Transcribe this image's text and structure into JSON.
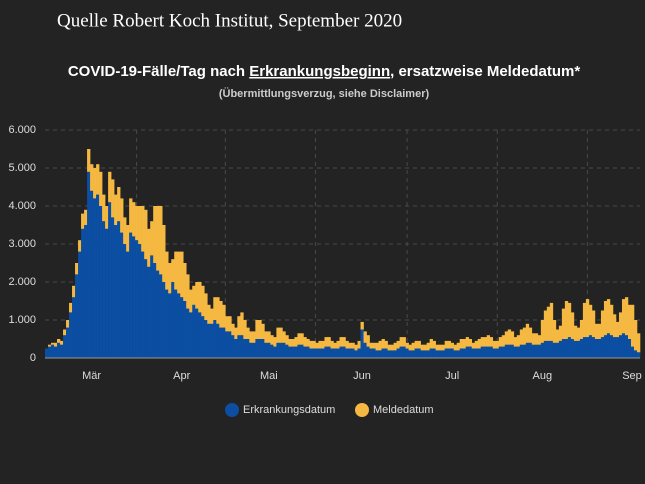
{
  "source": "Quelle Robert Koch Institut, September 2020",
  "chart_data": {
    "type": "stacked_bar",
    "title_parts": [
      "COVID-19-Fälle/Tag nach ",
      "Erkrankungsbeginn",
      ", ersatzweise Meldedatum*"
    ],
    "subtitle": "(Übermittlungsverzug, siehe Disclaimer)",
    "categories": [
      null,
      null,
      null,
      null,
      null,
      null,
      null,
      null,
      null,
      null,
      null,
      null,
      null,
      null,
      null,
      "Mär",
      null,
      null,
      null,
      null,
      null,
      null,
      null,
      null,
      null,
      null,
      null,
      null,
      null,
      null,
      null,
      null,
      null,
      null,
      null,
      null,
      null,
      null,
      null,
      null,
      null,
      null,
      null,
      null,
      null,
      "Apr",
      null,
      null,
      null,
      null,
      null,
      null,
      null,
      null,
      null,
      null,
      null,
      null,
      null,
      null,
      null,
      null,
      null,
      null,
      null,
      null,
      null,
      null,
      null,
      null,
      null,
      null,
      null,
      null,
      "Mai",
      null,
      null,
      null,
      null,
      null,
      null,
      null,
      null,
      null,
      null,
      null,
      null,
      null,
      null,
      null,
      null,
      null,
      null,
      null,
      null,
      null,
      null,
      null,
      null,
      null,
      null,
      null,
      null,
      null,
      null,
      "Jun",
      null,
      null,
      null,
      null,
      null,
      null,
      null,
      null,
      null,
      null,
      null,
      null,
      null,
      null,
      null,
      null,
      null,
      null,
      null,
      null,
      null,
      null,
      null,
      null,
      null,
      null,
      null,
      null,
      null,
      "Jul",
      null,
      null,
      null,
      null,
      null,
      null,
      null,
      null,
      null,
      null,
      null,
      null,
      null,
      null,
      null,
      null,
      null,
      null,
      null,
      null,
      null,
      null,
      null,
      null,
      null,
      null,
      null,
      null,
      null,
      "Aug",
      null,
      null,
      null,
      null,
      null,
      null,
      null,
      null,
      null,
      null,
      null,
      null,
      null,
      null,
      null,
      null,
      null,
      null,
      null,
      null,
      null,
      null,
      null,
      null,
      null,
      null,
      null,
      null,
      null,
      "Sep",
      null,
      null
    ],
    "series": [
      {
        "name": "Erkrankungsdatum",
        "color": "#0b4ea2",
        "values": [
          250,
          300,
          350,
          300,
          400,
          350,
          600,
          800,
          1200,
          1600,
          2200,
          2800,
          3400,
          3500,
          4900,
          4400,
          4200,
          4300,
          4000,
          3600,
          3400,
          4100,
          3700,
          3500,
          3600,
          3300,
          3000,
          2800,
          3300,
          3200,
          3100,
          3000,
          2800,
          2600,
          2400,
          2700,
          2500,
          2300,
          2200,
          2000,
          1800,
          1700,
          2000,
          1800,
          1700,
          1600,
          1500,
          1300,
          1200,
          1400,
          1300,
          1200,
          1100,
          1000,
          900,
          900,
          1000,
          900,
          800,
          800,
          700,
          700,
          600,
          500,
          600,
          600,
          500,
          500,
          400,
          400,
          500,
          500,
          500,
          400,
          400,
          350,
          300,
          400,
          400,
          400,
          350,
          300,
          300,
          300,
          350,
          350,
          300,
          300,
          250,
          250,
          250,
          250,
          250,
          300,
          300,
          250,
          250,
          250,
          300,
          300,
          250,
          250,
          250,
          200,
          250,
          750,
          400,
          300,
          250,
          250,
          200,
          200,
          250,
          250,
          200,
          200,
          200,
          250,
          300,
          300,
          250,
          200,
          200,
          250,
          250,
          200,
          200,
          200,
          250,
          250,
          200,
          200,
          200,
          250,
          250,
          250,
          200,
          200,
          250,
          250,
          300,
          300,
          250,
          250,
          250,
          300,
          300,
          300,
          300,
          250,
          250,
          300,
          300,
          350,
          350,
          350,
          300,
          300,
          350,
          350,
          400,
          400,
          350,
          350,
          350,
          400,
          450,
          450,
          450,
          400,
          400,
          450,
          500,
          500,
          550,
          500,
          450,
          450,
          500,
          550,
          550,
          600,
          550,
          500,
          500,
          550,
          600,
          650,
          600,
          550,
          550,
          600,
          650,
          600,
          500,
          300,
          200,
          150
        ]
      },
      {
        "name": "Meldedatum",
        "color": "#f5b942",
        "values": [
          0,
          50,
          50,
          100,
          100,
          100,
          150,
          200,
          250,
          300,
          300,
          300,
          400,
          400,
          600,
          700,
          800,
          800,
          900,
          700,
          600,
          800,
          1000,
          800,
          900,
          900,
          700,
          700,
          900,
          900,
          900,
          1000,
          1200,
          1300,
          1000,
          900,
          1500,
          1700,
          1800,
          1500,
          1000,
          800,
          600,
          1000,
          1100,
          1200,
          1000,
          900,
          600,
          500,
          700,
          800,
          800,
          700,
          500,
          400,
          600,
          700,
          700,
          600,
          400,
          400,
          300,
          300,
          500,
          600,
          500,
          300,
          300,
          300,
          500,
          500,
          400,
          300,
          300,
          250,
          250,
          400,
          400,
          300,
          250,
          200,
          200,
          250,
          300,
          300,
          250,
          200,
          200,
          200,
          150,
          200,
          200,
          250,
          250,
          200,
          150,
          200,
          250,
          250,
          200,
          150,
          150,
          150,
          200,
          200,
          300,
          300,
          150,
          150,
          200,
          250,
          250,
          200,
          150,
          150,
          200,
          200,
          250,
          250,
          150,
          150,
          200,
          200,
          200,
          150,
          150,
          200,
          250,
          200,
          150,
          150,
          150,
          200,
          200,
          150,
          150,
          200,
          250,
          250,
          250,
          200,
          150,
          200,
          250,
          250,
          250,
          300,
          250,
          200,
          200,
          250,
          300,
          350,
          400,
          350,
          250,
          300,
          400,
          450,
          500,
          400,
          300,
          300,
          250,
          600,
          800,
          900,
          1000,
          600,
          350,
          400,
          800,
          1000,
          900,
          700,
          400,
          350,
          500,
          900,
          1000,
          800,
          700,
          400,
          400,
          700,
          900,
          900,
          800,
          600,
          400,
          600,
          900,
          1000,
          900,
          1100,
          800,
          500
        ]
      }
    ],
    "ylim": [
      0,
      6000
    ],
    "yticks": [
      0,
      {
        "value": 1000,
        "label": "1.000"
      },
      {
        "value": 2000,
        "label": "2.000"
      },
      {
        "value": 3000,
        "label": "3.000"
      },
      {
        "value": 4000,
        "label": "4.000"
      },
      {
        "value": 5000,
        "label": "5.000"
      },
      {
        "value": 6000,
        "label": "6.000"
      }
    ],
    "grid": true
  }
}
